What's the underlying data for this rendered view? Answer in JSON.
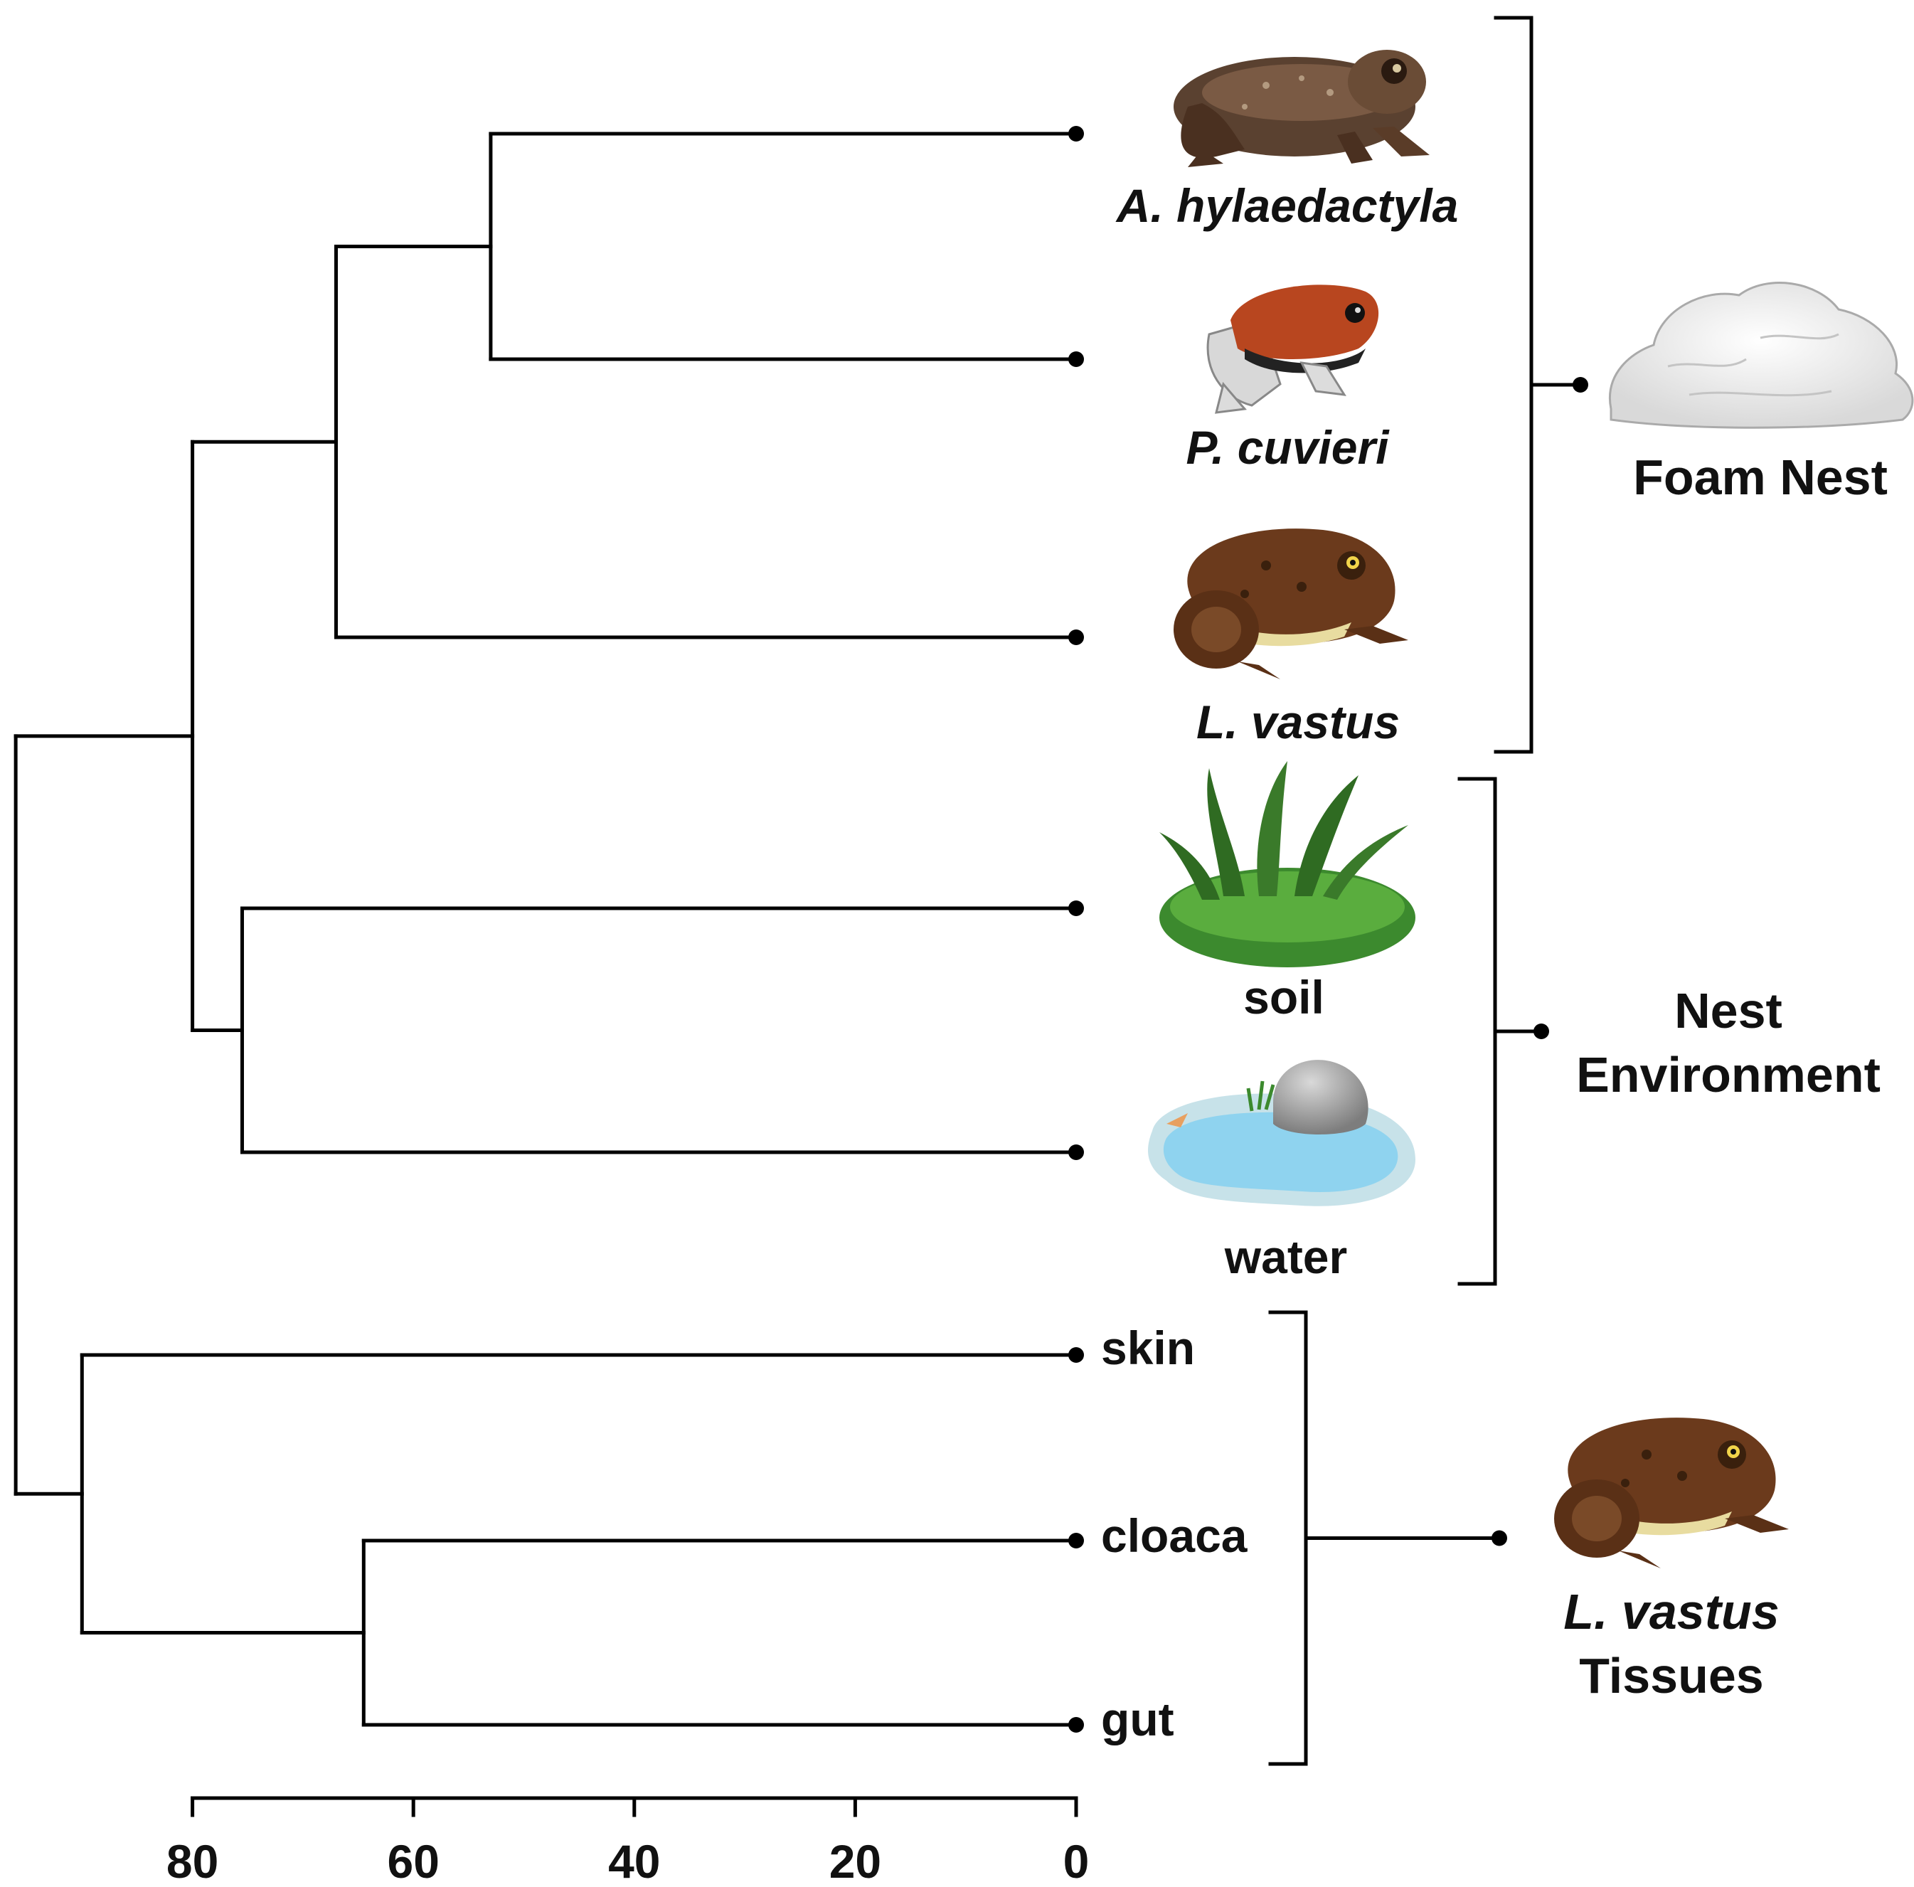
{
  "leaves": [
    {
      "label": "A. hylaedactyla",
      "italic": true
    },
    {
      "label": "P. cuvieri",
      "italic": true
    },
    {
      "label": "L. vastus",
      "italic": true
    },
    {
      "label": "soil",
      "italic": false
    },
    {
      "label": "water",
      "italic": false
    },
    {
      "label": "skin",
      "italic": false
    },
    {
      "label": "cloaca",
      "italic": false
    },
    {
      "label": "gut",
      "italic": false
    }
  ],
  "tree": {
    "merges": [
      {
        "id": "n1",
        "children": [
          "A. hylaedactyla",
          "P. cuvieri"
        ],
        "height": 53
      },
      {
        "id": "n2",
        "children": [
          "n1",
          "L. vastus"
        ],
        "height": 67
      },
      {
        "id": "n3",
        "children": [
          "soil",
          "water"
        ],
        "height": 75.5
      },
      {
        "id": "n4",
        "children": [
          "n2",
          "n3"
        ],
        "height": 80
      },
      {
        "id": "n5",
        "children": [
          "cloaca",
          "gut"
        ],
        "height": 64.5
      },
      {
        "id": "n6",
        "children": [
          "skin",
          "n5"
        ],
        "height": 90
      },
      {
        "id": "n7",
        "children": [
          "n4",
          "n6"
        ],
        "height": 96
      }
    ]
  },
  "axis": {
    "ticks": [
      "80",
      "60",
      "40",
      "20",
      "0"
    ]
  },
  "groups": [
    {
      "name": "foam-nest",
      "lines": [
        "Foam Nest"
      ],
      "italic_lines": [
        false
      ]
    },
    {
      "name": "nest-environment",
      "lines": [
        "Nest",
        "Environment"
      ],
      "italic_lines": [
        false,
        false
      ]
    },
    {
      "name": "l-vastus-tissues",
      "lines": [
        "L. vastus",
        "Tissues"
      ],
      "italic_lines": [
        true,
        false
      ]
    }
  ],
  "icons": [
    "toad-icon",
    "red-frog-icon",
    "brown-frog-icon",
    "grass-icon",
    "pond-icon",
    "foam-icon",
    "brown-frog-icon"
  ],
  "colors": {
    "line": "#000000",
    "grass": "#3c8a2e",
    "water": "#8fd3ef",
    "frog_brown": "#6b3a1c",
    "frog_red": "#b8461f",
    "foam": "#f2f2f2"
  }
}
